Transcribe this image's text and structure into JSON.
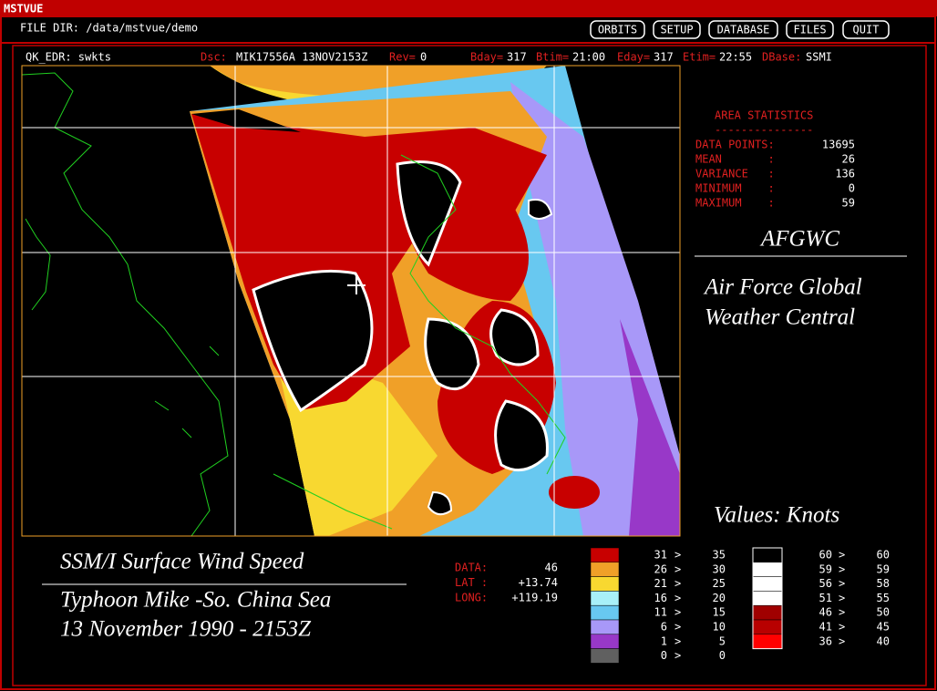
{
  "window": {
    "title": "MSTVUE"
  },
  "toolbar": {
    "file_dir": "FILE DIR: /data/mstvue/demo",
    "buttons": [
      "ORBITS",
      "SETUP",
      "DATABASE",
      "FILES",
      "QUIT"
    ]
  },
  "info_bar": {
    "product": "QK_EDR: swkts",
    "fields": [
      {
        "label": "Dsc:",
        "value": "MIK17556A 13NOV2153Z"
      },
      {
        "label": "Rev=",
        "value": "0"
      },
      {
        "label": "Bday=",
        "value": "317"
      },
      {
        "label": "Btim=",
        "value": "21:00"
      },
      {
        "label": "Eday=",
        "value": "317"
      },
      {
        "label": "Etim=",
        "value": "22:55"
      },
      {
        "label": "DBase:",
        "value": "SSMI"
      }
    ]
  },
  "area_statistics": {
    "title": "AREA STATISTICS",
    "underline": "---------------",
    "rows": [
      {
        "label": "DATA POINTS:",
        "value": "13695"
      },
      {
        "label": "MEAN       :",
        "value": "26"
      },
      {
        "label": "VARIANCE   :",
        "value": "136"
      },
      {
        "label": "MINIMUM    :",
        "value": "0"
      },
      {
        "label": "MAXIMUM    :",
        "value": "59"
      }
    ]
  },
  "agency": {
    "acronym": "AFGWC",
    "name_lines": [
      "Air Force Global",
      "Weather Central"
    ]
  },
  "units_label": "Values: Knots",
  "caption": {
    "title": "SSM/I Surface Wind Speed",
    "lines": [
      "Typhoon Mike -So. China Sea",
      "13 November 1990 - 2153Z"
    ]
  },
  "cursor": {
    "rows": [
      {
        "label": "DATA:",
        "value": "46"
      },
      {
        "label": "LAT :",
        "value": "+13.74"
      },
      {
        "label": "LONG:",
        "value": "+119.19"
      }
    ]
  },
  "legend_left": {
    "separator": ">",
    "rows": [
      {
        "color": "#c80000",
        "from": "31",
        "to": "35"
      },
      {
        "color": "#f0a028",
        "from": "26",
        "to": "30"
      },
      {
        "color": "#f8d830",
        "from": "21",
        "to": "25"
      },
      {
        "color": "#a8f0f8",
        "from": "16",
        "to": "20"
      },
      {
        "color": "#68c8f0",
        "from": "11",
        "to": "15"
      },
      {
        "color": "#a898f8",
        "from": "6",
        "to": "10"
      },
      {
        "color": "#9838c8",
        "from": "1",
        "to": "5"
      },
      {
        "color": "#606060",
        "from": "0",
        "to": "0"
      }
    ]
  },
  "legend_right": {
    "separator": ">",
    "rows": [
      {
        "color": "#000000",
        "from": "60",
        "to": "60"
      },
      {
        "color": "#ffffff",
        "from": "59",
        "to": "59"
      },
      {
        "color": "#ffffff",
        "from": "56",
        "to": "58"
      },
      {
        "color": "#ffffff",
        "from": "51",
        "to": "55"
      },
      {
        "color": "#a00000",
        "from": "46",
        "to": "50"
      },
      {
        "color": "#b80000",
        "from": "41",
        "to": "45"
      },
      {
        "color": "#ff0000",
        "from": "36",
        "to": "40"
      }
    ]
  }
}
